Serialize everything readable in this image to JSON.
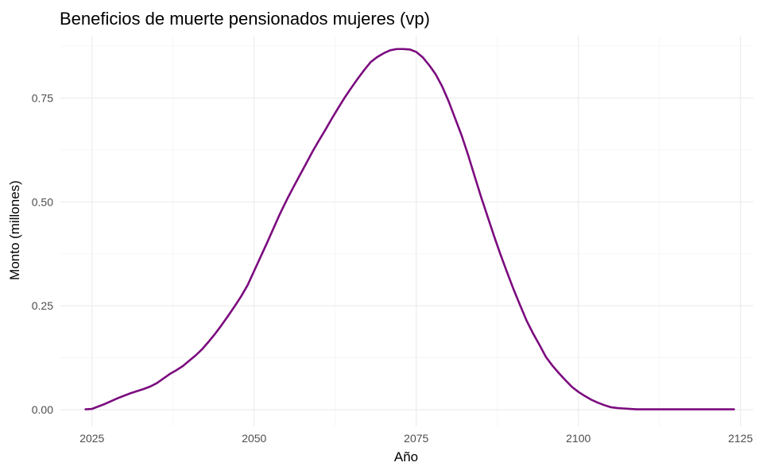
{
  "chart_data": {
    "type": "line",
    "title": "Beneficios de muerte pensionados mujeres (vp)",
    "xlabel": "Año",
    "ylabel": "Monto (millones)",
    "xlim": [
      2020,
      2127
    ],
    "ylim": [
      -0.04,
      0.9
    ],
    "x_ticks": [
      2025,
      2050,
      2075,
      2100,
      2125
    ],
    "x_tick_labels": [
      "2025",
      "2050",
      "2075",
      "2100",
      "2125"
    ],
    "y_ticks": [
      0,
      0.25,
      0.5,
      0.75
    ],
    "y_tick_labels": [
      "0.00",
      "0.25",
      "0.50",
      "0.75"
    ],
    "grid": true,
    "legend": "none",
    "series_color": "#7b0a7e",
    "series": [
      {
        "x": [
          2024,
          2025,
          2026,
          2027,
          2028,
          2029,
          2030,
          2031,
          2032,
          2033,
          2034,
          2035,
          2036,
          2037,
          2038,
          2039,
          2040,
          2041,
          2042,
          2043,
          2044,
          2045,
          2046,
          2047,
          2048,
          2049,
          2050,
          2051,
          2052,
          2053,
          2054,
          2055,
          2056,
          2057,
          2058,
          2059,
          2060,
          2061,
          2062,
          2063,
          2064,
          2065,
          2066,
          2067,
          2068,
          2069,
          2070,
          2071,
          2072,
          2073,
          2074,
          2075,
          2076,
          2077,
          2078,
          2079,
          2080,
          2081,
          2082,
          2083,
          2084,
          2085,
          2086,
          2087,
          2088,
          2089,
          2090,
          2091,
          2092,
          2093,
          2094,
          2095,
          2096,
          2097,
          2098,
          2099,
          2100,
          2101,
          2102,
          2103,
          2104,
          2105,
          2106,
          2107,
          2108,
          2109,
          2110,
          2111,
          2112,
          2113,
          2114,
          2115,
          2116,
          2117,
          2118,
          2119,
          2120,
          2121,
          2122,
          2123,
          2124
        ],
        "values": [
          0.001,
          0.002,
          0.008,
          0.014,
          0.021,
          0.028,
          0.034,
          0.04,
          0.045,
          0.05,
          0.056,
          0.064,
          0.075,
          0.086,
          0.095,
          0.105,
          0.118,
          0.131,
          0.146,
          0.164,
          0.183,
          0.204,
          0.226,
          0.249,
          0.273,
          0.3,
          0.334,
          0.368,
          0.402,
          0.437,
          0.472,
          0.504,
          0.534,
          0.563,
          0.592,
          0.621,
          0.648,
          0.674,
          0.701,
          0.727,
          0.752,
          0.775,
          0.797,
          0.818,
          0.837,
          0.849,
          0.858,
          0.865,
          0.868,
          0.868,
          0.867,
          0.861,
          0.848,
          0.829,
          0.807,
          0.778,
          0.742,
          0.701,
          0.66,
          0.613,
          0.562,
          0.512,
          0.465,
          0.418,
          0.373,
          0.331,
          0.29,
          0.252,
          0.215,
          0.184,
          0.156,
          0.127,
          0.106,
          0.088,
          0.071,
          0.055,
          0.043,
          0.033,
          0.024,
          0.017,
          0.011,
          0.006,
          0.004,
          0.003,
          0.002,
          0.001,
          0.001,
          0.001,
          0.001,
          0.001,
          0.001,
          0.001,
          0.001,
          0.001,
          0.001,
          0.001,
          0.001,
          0.001,
          0.001,
          0.001,
          0.001
        ]
      }
    ]
  }
}
